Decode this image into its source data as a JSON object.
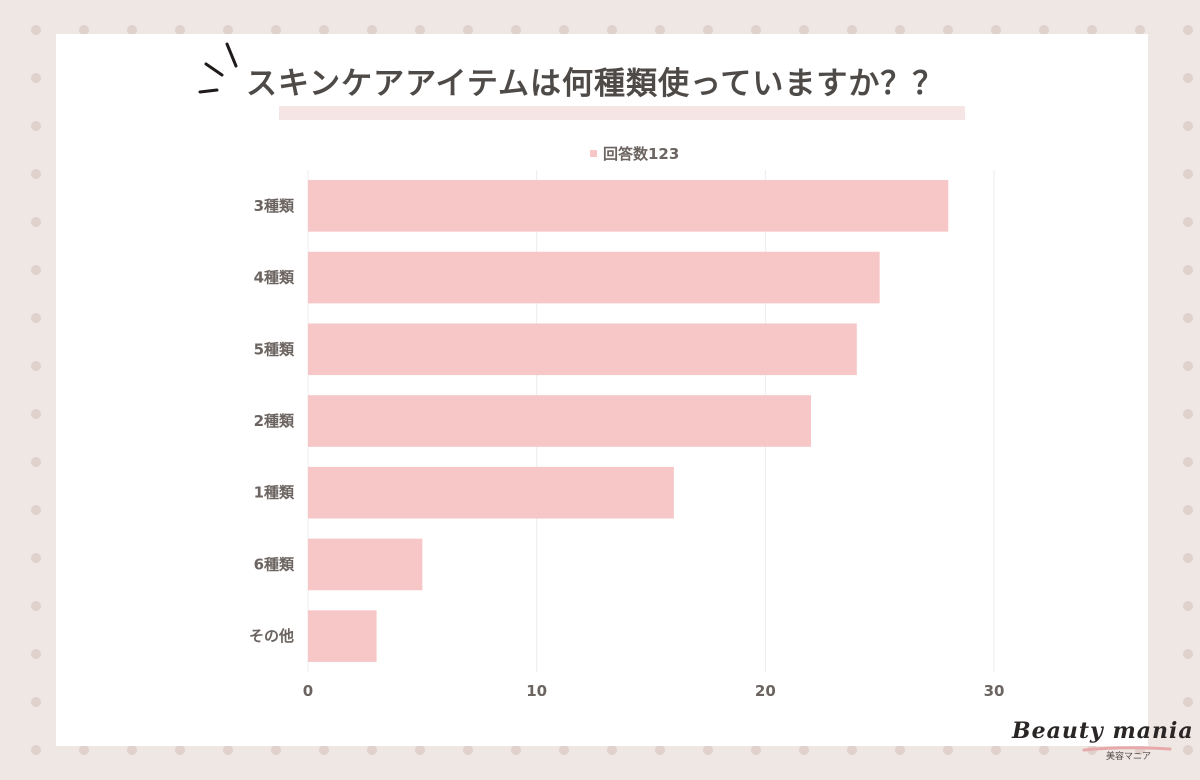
{
  "colors": {
    "bar": "#f7c7c8",
    "grid": "#ececec",
    "text": "#6b6461",
    "title": "#4e4a48",
    "background": "#efe7e4",
    "dot": "#e0d1cc"
  },
  "chart_data": {
    "type": "bar",
    "orientation": "horizontal",
    "title": "スキンケアアイテムは何種類使っていますか？？",
    "legend_position": "top-center",
    "grid": true,
    "categories": [
      "3種類",
      "4種類",
      "5種類",
      "2種類",
      "1種類",
      "6種類",
      "その他"
    ],
    "series": [
      {
        "name": "回答数123",
        "values": [
          28,
          25,
          24,
          22,
          16,
          5,
          3
        ]
      }
    ],
    "xlim": [
      0,
      30
    ],
    "xticks": [
      0,
      10,
      20,
      30
    ],
    "xlabel": "",
    "ylabel": ""
  },
  "logo": {
    "text": "Beauty mania",
    "subtext": "美容マニア"
  }
}
